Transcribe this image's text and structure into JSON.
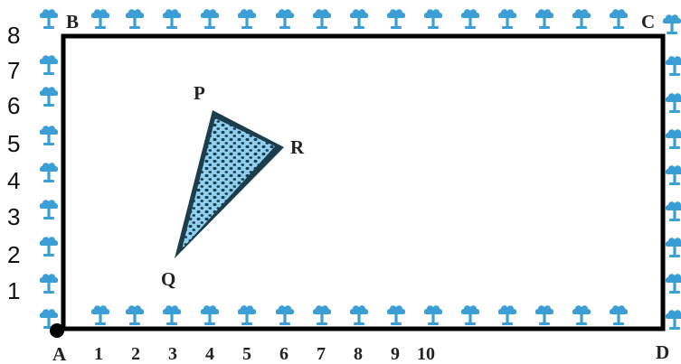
{
  "figure": {
    "corner_labels": {
      "a": "A",
      "b": "B",
      "c": "C",
      "d": "D"
    },
    "triangle_labels": {
      "p": "P",
      "q": "Q",
      "r": "R"
    },
    "x_ticks": [
      "1",
      "2",
      "3",
      "4",
      "5",
      "6",
      "7",
      "8",
      "9",
      "10"
    ],
    "y_ticks": [
      "1",
      "2",
      "3",
      "4",
      "5",
      "6",
      "7",
      "8"
    ]
  },
  "icons": {
    "tree": "tree-icon"
  },
  "colors": {
    "border": "#000000",
    "tree": "#3b9fd6",
    "triangle_fill": "#8fd0f0",
    "triangle_outline": "#1b3d4c"
  }
}
